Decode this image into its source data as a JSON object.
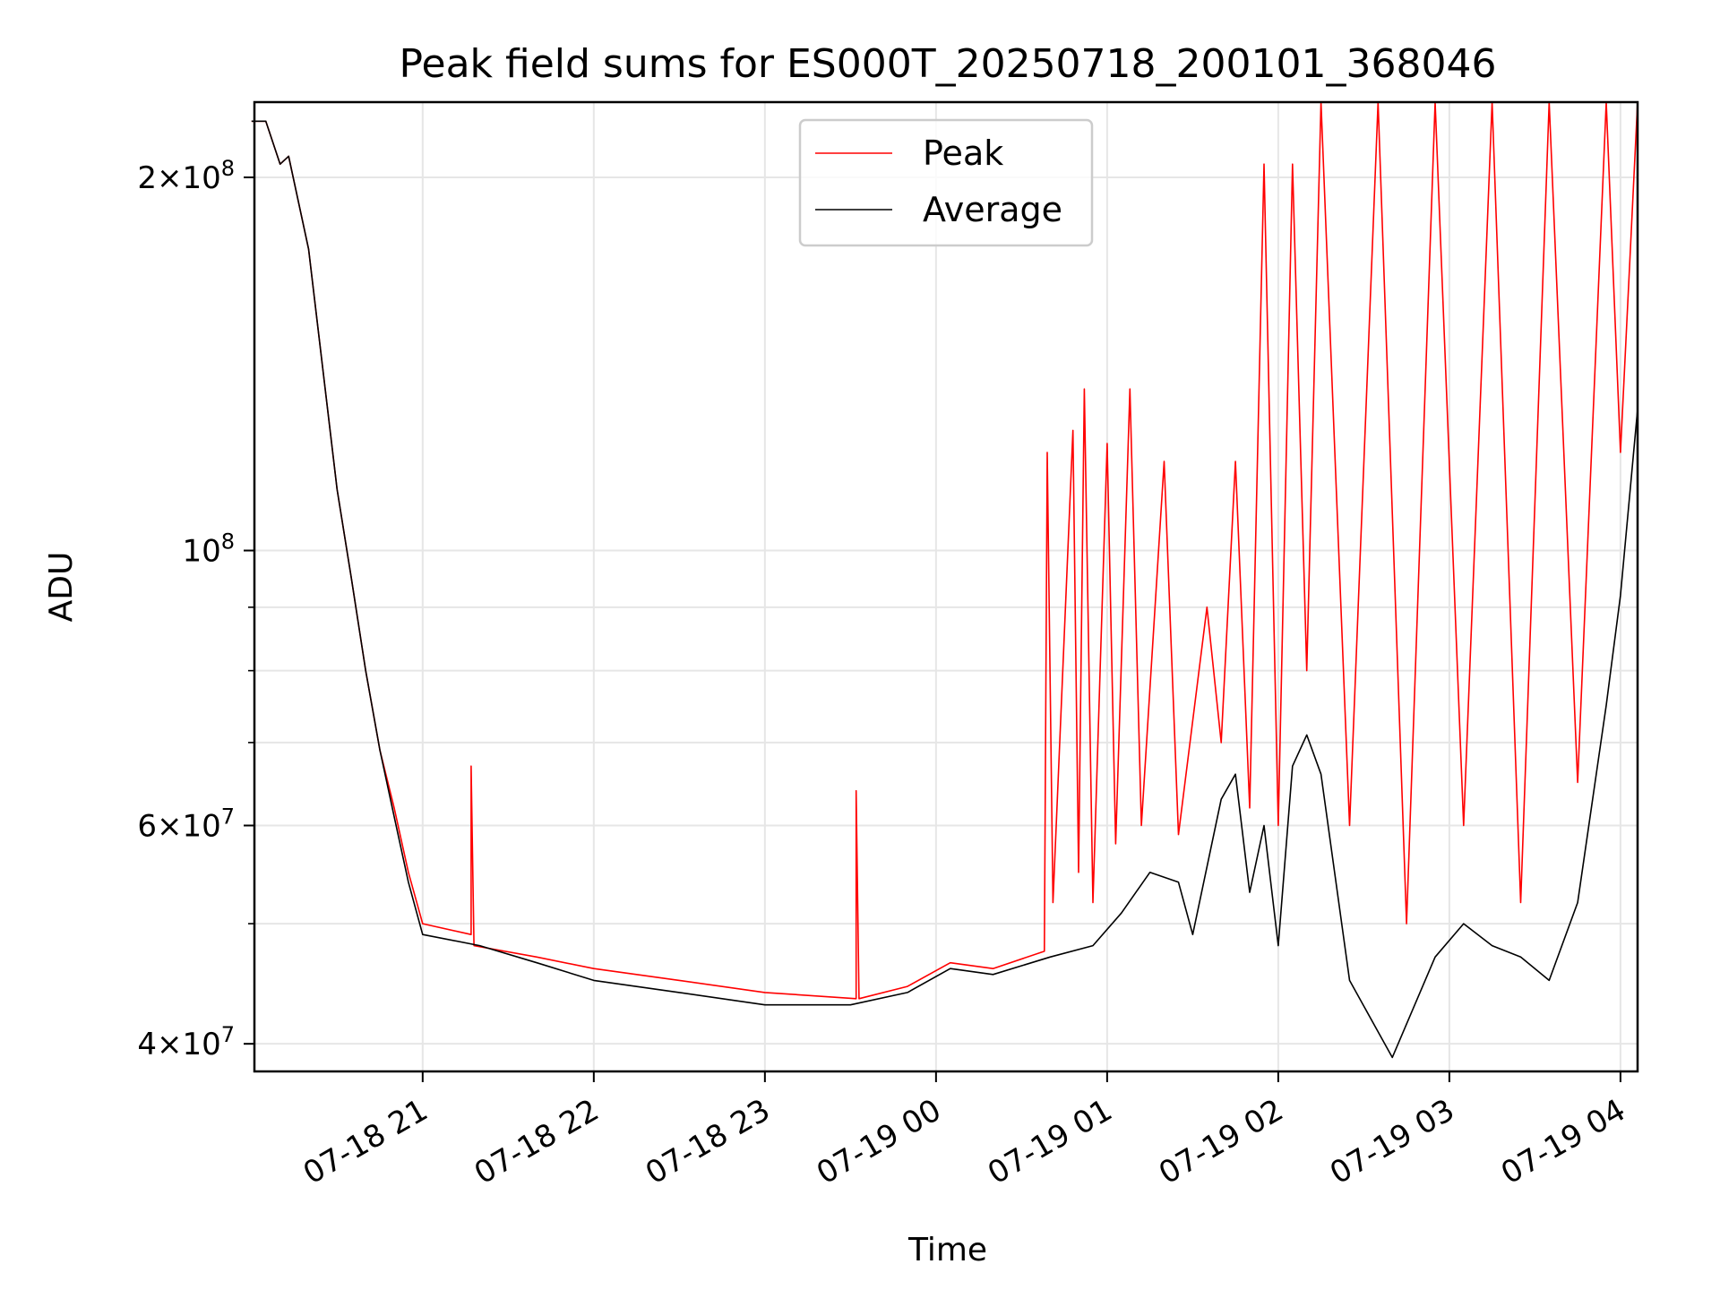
{
  "chart_data": {
    "type": "line",
    "title": "Peak field sums for ES000T_20250718_200101_368046",
    "xlabel": "Time",
    "ylabel": "ADU",
    "yscale": "log",
    "ylim": [
      38000000,
      230000000
    ],
    "xlim": [
      "07-18 20:01",
      "07-19 04:06"
    ],
    "grid": true,
    "legend_position": "top-center",
    "x_ticks": [
      "07-18 21",
      "07-18 22",
      "07-18 23",
      "07-19 00",
      "07-19 01",
      "07-19 02",
      "07-19 03",
      "07-19 04"
    ],
    "y_tick_labels": [
      {
        "value": 40000000,
        "mantissa": "4",
        "exponent": "7"
      },
      {
        "value": 60000000,
        "mantissa": "6",
        "exponent": "7"
      },
      {
        "value": 100000000,
        "mantissa": "",
        "exponent": "8"
      },
      {
        "value": 200000000,
        "mantissa": "2",
        "exponent": "8"
      }
    ],
    "y_minor_ticks": [
      50000000,
      70000000,
      80000000,
      90000000
    ],
    "series": [
      {
        "name": "Average",
        "color": "#000000",
        "points": [
          [
            "07-18 20:00",
            222000000
          ],
          [
            "07-18 20:05",
            222000000
          ],
          [
            "07-18 20:10",
            205000000
          ],
          [
            "07-18 20:13",
            208000000
          ],
          [
            "07-18 20:20",
            175000000
          ],
          [
            "07-18 20:25",
            140000000
          ],
          [
            "07-18 20:30",
            112000000
          ],
          [
            "07-18 20:35",
            95000000
          ],
          [
            "07-18 20:40",
            80000000
          ],
          [
            "07-18 20:45",
            69000000
          ],
          [
            "07-18 20:50",
            61000000
          ],
          [
            "07-18 20:55",
            54000000
          ],
          [
            "07-18 21:00",
            49000000
          ],
          [
            "07-18 21:20",
            48000000
          ],
          [
            "07-18 21:40",
            46500000
          ],
          [
            "07-18 22:00",
            45000000
          ],
          [
            "07-18 22:30",
            44000000
          ],
          [
            "07-18 23:00",
            43000000
          ],
          [
            "07-18 23:30",
            43000000
          ],
          [
            "07-18 23:50",
            44000000
          ],
          [
            "07-19 00:05",
            46000000
          ],
          [
            "07-19 00:20",
            45500000
          ],
          [
            "07-19 00:40",
            47000000
          ],
          [
            "07-19 00:55",
            48000000
          ],
          [
            "07-19 01:05",
            51000000
          ],
          [
            "07-19 01:15",
            55000000
          ],
          [
            "07-19 01:25",
            54000000
          ],
          [
            "07-19 01:30",
            49000000
          ],
          [
            "07-19 01:40",
            63000000
          ],
          [
            "07-19 01:45",
            66000000
          ],
          [
            "07-19 01:50",
            53000000
          ],
          [
            "07-19 01:55",
            60000000
          ],
          [
            "07-19 02:00",
            48000000
          ],
          [
            "07-19 02:05",
            67000000
          ],
          [
            "07-19 02:10",
            71000000
          ],
          [
            "07-19 02:15",
            66000000
          ],
          [
            "07-19 02:25",
            45000000
          ],
          [
            "07-19 02:40",
            39000000
          ],
          [
            "07-19 02:55",
            47000000
          ],
          [
            "07-19 03:05",
            50000000
          ],
          [
            "07-19 03:15",
            48000000
          ],
          [
            "07-19 03:25",
            47000000
          ],
          [
            "07-19 03:35",
            45000000
          ],
          [
            "07-19 03:45",
            52000000
          ],
          [
            "07-19 03:55",
            75000000
          ],
          [
            "07-19 04:00",
            92000000
          ],
          [
            "07-19 04:06",
            130000000
          ]
        ]
      },
      {
        "name": "Peak",
        "color": "#ff0000",
        "points": [
          [
            "07-18 20:00",
            222000000
          ],
          [
            "07-18 20:05",
            222000000
          ],
          [
            "07-18 20:10",
            205000000
          ],
          [
            "07-18 20:13",
            208000000
          ],
          [
            "07-18 20:20",
            175000000
          ],
          [
            "07-18 20:25",
            140000000
          ],
          [
            "07-18 20:30",
            112000000
          ],
          [
            "07-18 20:35",
            95000000
          ],
          [
            "07-18 20:40",
            80000000
          ],
          [
            "07-18 20:45",
            69000000
          ],
          [
            "07-18 20:50",
            62000000
          ],
          [
            "07-18 20:55",
            55000000
          ],
          [
            "07-18 21:00",
            50000000
          ],
          [
            "07-18 21:17",
            49000000
          ],
          [
            "07-18 21:17",
            67000000
          ],
          [
            "07-18 21:18",
            48000000
          ],
          [
            "07-18 21:40",
            47000000
          ],
          [
            "07-18 22:00",
            46000000
          ],
          [
            "07-18 22:30",
            45000000
          ],
          [
            "07-18 23:00",
            44000000
          ],
          [
            "07-18 23:32",
            43500000
          ],
          [
            "07-18 23:32",
            64000000
          ],
          [
            "07-18 23:33",
            43500000
          ],
          [
            "07-18 23:50",
            44500000
          ],
          [
            "07-19 00:05",
            46500000
          ],
          [
            "07-19 00:20",
            46000000
          ],
          [
            "07-19 00:38",
            47500000
          ],
          [
            "07-19 00:39",
            120000000
          ],
          [
            "07-19 00:41",
            52000000
          ],
          [
            "07-19 00:48",
            125000000
          ],
          [
            "07-19 00:50",
            55000000
          ],
          [
            "07-19 00:52",
            135000000
          ],
          [
            "07-19 00:55",
            52000000
          ],
          [
            "07-19 01:00",
            122000000
          ],
          [
            "07-19 01:03",
            58000000
          ],
          [
            "07-19 01:08",
            135000000
          ],
          [
            "07-19 01:12",
            60000000
          ],
          [
            "07-19 01:20",
            118000000
          ],
          [
            "07-19 01:25",
            59000000
          ],
          [
            "07-19 01:35",
            90000000
          ],
          [
            "07-19 01:40",
            70000000
          ],
          [
            "07-19 01:45",
            118000000
          ],
          [
            "07-19 01:50",
            62000000
          ],
          [
            "07-19 01:55",
            205000000
          ],
          [
            "07-19 02:00",
            60000000
          ],
          [
            "07-19 02:05",
            205000000
          ],
          [
            "07-19 02:10",
            80000000
          ],
          [
            "07-19 02:15",
            230000000
          ],
          [
            "07-19 02:25",
            60000000
          ],
          [
            "07-19 02:35",
            230000000
          ],
          [
            "07-19 02:45",
            50000000
          ],
          [
            "07-19 02:55",
            230000000
          ],
          [
            "07-19 03:05",
            60000000
          ],
          [
            "07-19 03:15",
            230000000
          ],
          [
            "07-19 03:25",
            52000000
          ],
          [
            "07-19 03:35",
            230000000
          ],
          [
            "07-19 03:45",
            65000000
          ],
          [
            "07-19 03:55",
            230000000
          ],
          [
            "07-19 04:00",
            120000000
          ],
          [
            "07-19 04:06",
            230000000
          ]
        ]
      }
    ]
  }
}
